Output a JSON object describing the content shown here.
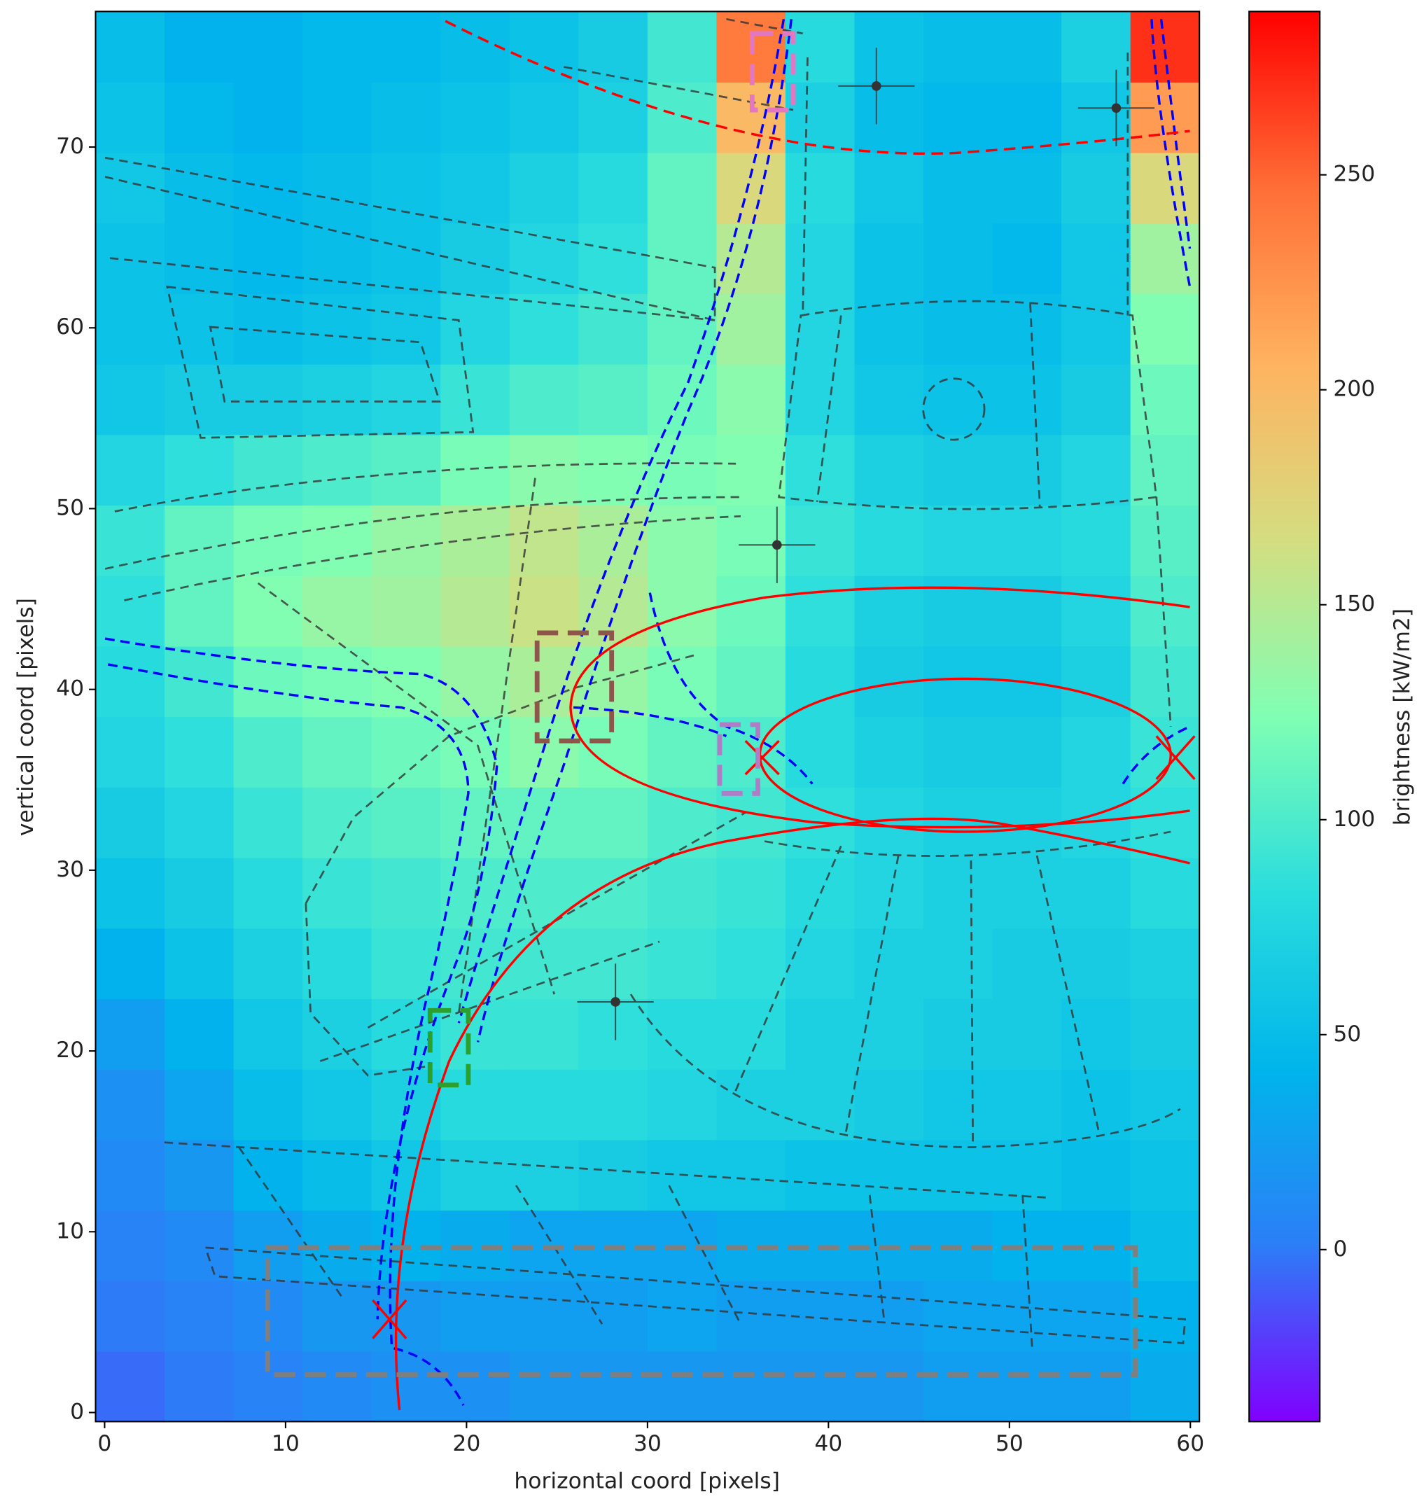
{
  "chart_data": {
    "type": "heatmap",
    "xlabel": "horizontal coord [pixels]",
    "ylabel": "vertical coord [pixels]",
    "colorbar_label": "brightness [kW/m2]",
    "xlim": [
      -0.5,
      60.5
    ],
    "ylim": [
      -0.5,
      77.5
    ],
    "xticks": [
      0,
      10,
      20,
      30,
      40,
      50,
      60
    ],
    "yticks": [
      0,
      10,
      20,
      30,
      40,
      50,
      60,
      70
    ],
    "clim": [
      -40,
      288
    ],
    "cticks": [
      0,
      50,
      100,
      150,
      200,
      250
    ],
    "colormap": [
      "#8000ff",
      "#2c7ef7",
      "#00b5eb",
      "#2adddd",
      "#80ffb4",
      "#d4dd80",
      "#ffb360",
      "#ff6e36",
      "#ff0000"
    ],
    "z": [
      [
        -5,
        0,
        5,
        10,
        15,
        15,
        20,
        20,
        20,
        20,
        20,
        20,
        25,
        25,
        25,
        35
      ],
      [
        0,
        5,
        10,
        20,
        20,
        25,
        25,
        25,
        30,
        25,
        25,
        25,
        30,
        30,
        30,
        40
      ],
      [
        5,
        10,
        25,
        35,
        40,
        35,
        30,
        30,
        30,
        35,
        35,
        35,
        35,
        40,
        40,
        50
      ],
      [
        10,
        20,
        40,
        50,
        60,
        70,
        70,
        65,
        60,
        60,
        55,
        55,
        55,
        55,
        50,
        55
      ],
      [
        15,
        30,
        50,
        60,
        70,
        80,
        80,
        80,
        75,
        70,
        70,
        65,
        60,
        60,
        55,
        60
      ],
      [
        25,
        40,
        60,
        70,
        80,
        90,
        90,
        85,
        80,
        80,
        70,
        70,
        65,
        65,
        60,
        65
      ],
      [
        40,
        55,
        70,
        80,
        90,
        95,
        95,
        95,
        90,
        85,
        75,
        70,
        70,
        65,
        65,
        70
      ],
      [
        55,
        65,
        80,
        90,
        95,
        100,
        100,
        100,
        95,
        90,
        80,
        75,
        70,
        70,
        70,
        80
      ],
      [
        65,
        75,
        90,
        100,
        105,
        110,
        110,
        110,
        100,
        95,
        85,
        75,
        70,
        70,
        75,
        85
      ],
      [
        75,
        85,
        100,
        110,
        115,
        120,
        130,
        120,
        110,
        100,
        80,
        70,
        65,
        65,
        75,
        90
      ],
      [
        80,
        95,
        115,
        120,
        125,
        135,
        145,
        135,
        120,
        110,
        80,
        65,
        60,
        60,
        70,
        95
      ],
      [
        85,
        110,
        125,
        135,
        140,
        150,
        160,
        150,
        130,
        115,
        85,
        70,
        65,
        65,
        75,
        100
      ],
      [
        90,
        110,
        120,
        125,
        135,
        145,
        155,
        145,
        130,
        120,
        90,
        80,
        75,
        75,
        80,
        105
      ],
      [
        75,
        85,
        95,
        100,
        105,
        120,
        130,
        125,
        120,
        125,
        85,
        70,
        65,
        65,
        75,
        110
      ],
      [
        60,
        65,
        65,
        70,
        75,
        90,
        100,
        105,
        115,
        130,
        75,
        60,
        55,
        55,
        65,
        115
      ],
      [
        55,
        55,
        50,
        55,
        60,
        75,
        85,
        95,
        110,
        140,
        75,
        55,
        50,
        50,
        60,
        125
      ],
      [
        55,
        50,
        45,
        50,
        55,
        65,
        75,
        85,
        110,
        150,
        75,
        55,
        50,
        45,
        60,
        140
      ],
      [
        60,
        50,
        45,
        50,
        55,
        60,
        70,
        80,
        110,
        170,
        80,
        60,
        50,
        50,
        65,
        170
      ],
      [
        55,
        45,
        40,
        45,
        50,
        55,
        60,
        70,
        100,
        200,
        70,
        50,
        45,
        45,
        60,
        220
      ],
      [
        50,
        40,
        40,
        45,
        45,
        50,
        55,
        65,
        95,
        240,
        80,
        55,
        50,
        50,
        70,
        270
      ]
    ]
  }
}
